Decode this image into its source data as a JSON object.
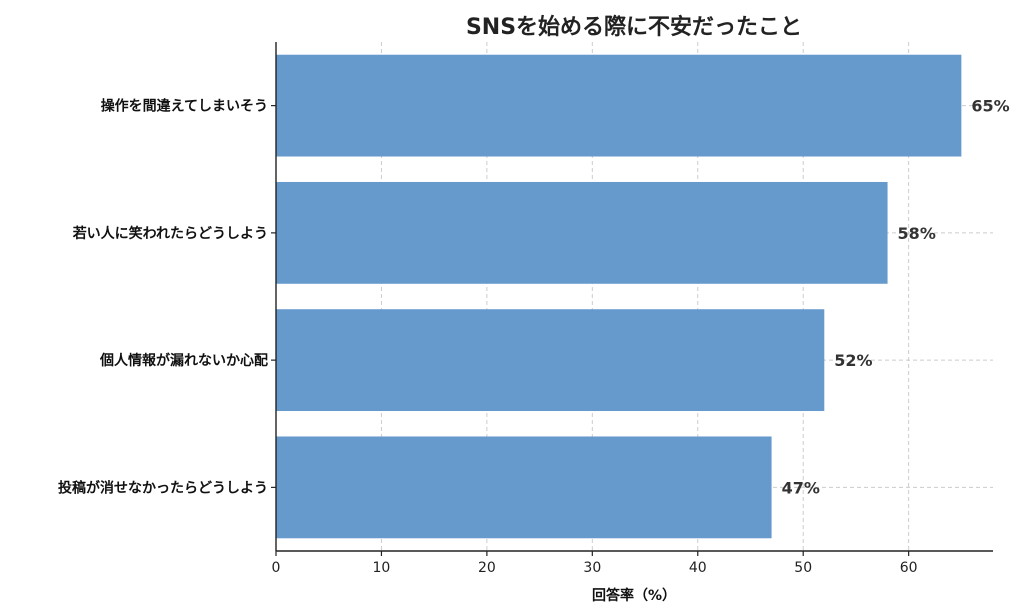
{
  "chart_data": {
    "type": "bar",
    "orientation": "horizontal",
    "title": "SNSを始める際に不安だったこと",
    "xlabel": "回答率（%）",
    "ylabel": "",
    "categories": [
      "操作を間違えてしまいそう",
      "若い人に笑われたらどうしよう",
      "個人情報が漏れないか心配",
      "投稿が消せなかったらどうしよう"
    ],
    "values": [
      65,
      58,
      52,
      47
    ],
    "value_labels": [
      "65%",
      "58%",
      "52%",
      "47%"
    ],
    "xlim": [
      0,
      68
    ],
    "xticks": [
      0,
      10,
      20,
      30,
      40,
      50,
      60
    ],
    "grid": true,
    "bar_color": "#6699cc"
  }
}
